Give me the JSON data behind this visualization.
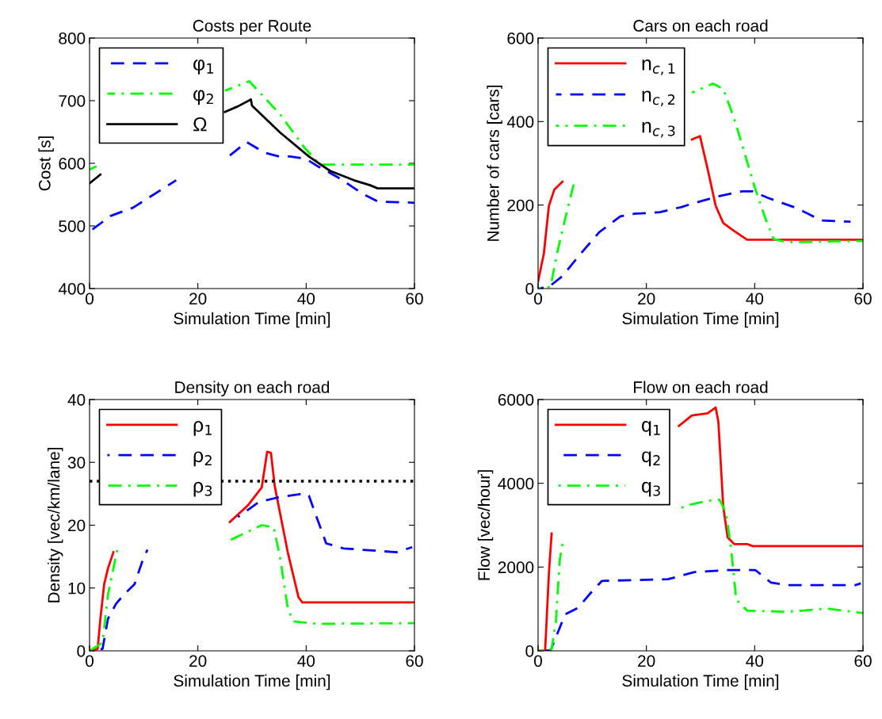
{
  "chart_data": [
    {
      "type": "line",
      "title": "Costs per Route",
      "xlabel": "Simulation Time [min]",
      "ylabel": "Cost [s]",
      "xlim": [
        0,
        60
      ],
      "ylim": [
        400,
        800
      ],
      "xticks": [
        0,
        20,
        40,
        60
      ],
      "yticks": [
        400,
        500,
        600,
        700,
        800
      ],
      "legend": "top left",
      "grid": false,
      "series": [
        {
          "name": "φ$_{1}$",
          "color": "#0000ff",
          "line_style": "dashed",
          "x": [
            0,
            3.9,
            8,
            16,
            20,
            25.4,
            29,
            32.3,
            35,
            37,
            40,
            42,
            46,
            50.3,
            53.2,
            60
          ],
          "values": [
            491,
            516,
            529,
            573,
            null,
            609,
            634,
            617,
            611,
            611,
            607,
            596,
            577,
            552,
            539,
            537
          ]
        },
        {
          "name": "φ$_{2}$",
          "color": "#00ff00",
          "line_style": "dashdot",
          "x": [
            0,
            2,
            10,
            25,
            29.5,
            35.2,
            39.6,
            42.5,
            60
          ],
          "values": [
            590,
            598,
            null,
            716,
            731,
            678,
            626,
            598,
            598
          ]
        },
        {
          "name": "Ω",
          "color": "#000000",
          "line_style": "solid",
          "x": [
            0,
            2,
            10,
            25,
            27.4,
            29.8,
            30,
            35.2,
            40.5,
            44.4,
            48.8,
            51.8,
            53.2,
            60
          ],
          "values": [
            568,
            582,
            null,
            682,
            691,
            702,
            692,
            649,
            611,
            588,
            573,
            565,
            560,
            560
          ]
        }
      ]
    },
    {
      "type": "line",
      "title": "Cars on each road",
      "xlabel": "Simulation Time [min]",
      "ylabel": "Number of cars [cars]",
      "xlim": [
        0,
        60
      ],
      "ylim": [
        0,
        600
      ],
      "xticks": [
        0,
        20,
        40,
        60
      ],
      "yticks": [
        0,
        200,
        400,
        600
      ],
      "legend": "top left",
      "grid": false,
      "series": [
        {
          "name": "n$_{c,1}$",
          "color": "#ff0000",
          "line_style": "solid",
          "x": [
            0,
            1.07,
            2,
            3,
            4.5,
            15,
            28.4,
            29.9,
            31.3,
            32.8,
            34.2,
            36.2,
            38.6,
            60
          ],
          "values": [
            17,
            84,
            198,
            237,
            256,
            null,
            357,
            365,
            287,
            198,
            157,
            138,
            117,
            117
          ]
        },
        {
          "name": "n$_{c,2}$",
          "color": "#0000ff",
          "line_style": "dashed",
          "x": [
            0,
            2,
            4.5,
            7.9,
            11.3,
            15.2,
            17.7,
            22.5,
            26.4,
            28.9,
            33.3,
            37.7,
            39.6,
            42.5,
            47.9,
            52.3,
            57.7
          ],
          "values": [
            0,
            4,
            30,
            84,
            135,
            173,
            179,
            183,
            195,
            205,
            221,
            233,
            233,
            217,
            192,
            163,
            160
          ]
        },
        {
          "name": "n$_{c,3}$",
          "color": "#00ff00",
          "line_style": "dashdot",
          "x": [
            0,
            2.3,
            3.5,
            5,
            6.7,
            15,
            28.4,
            32.3,
            34.2,
            36.2,
            38.1,
            40,
            42,
            43.5,
            45.9,
            60
          ],
          "values": [
            0,
            4,
            84,
            167,
            256,
            null,
            469,
            491,
            478,
            408,
            326,
            243,
            167,
            119,
            111,
            114
          ]
        }
      ]
    },
    {
      "type": "line",
      "title": "Density on each road",
      "xlabel": "Simulation Time [min]",
      "ylabel": "Density [vec/km/lane]",
      "xlim": [
        0,
        60
      ],
      "ylim": [
        0,
        40
      ],
      "xticks": [
        0,
        20,
        40,
        60
      ],
      "yticks": [
        0,
        10,
        20,
        30,
        40
      ],
      "legend": "top left",
      "grid": false,
      "ref_lines": [
        {
          "axis": "y",
          "value": 27,
          "color": "#000000",
          "line_style": "dotted"
        }
      ],
      "series": [
        {
          "name": "ρ$_{1}$",
          "color": "#ff0000",
          "line_style": "solid",
          "x": [
            0,
            1.5,
            2,
            2.7,
            3.4,
            4.4,
            15,
            25.9,
            29.3,
            31.8,
            32.8,
            33.5,
            34.2,
            36.6,
            38.6,
            39.3,
            60
          ],
          "values": [
            0,
            0.3,
            5.1,
            10.6,
            13.1,
            15.7,
            null,
            20.5,
            23.2,
            26,
            31.7,
            31.5,
            26.2,
            15.7,
            8.5,
            7.7,
            7.7
          ]
        },
        {
          "name": "ρ$_{2}$",
          "color": "#0000ff",
          "line_style": "dashed",
          "x": [
            0,
            2.4,
            3.4,
            4.9,
            6.3,
            8.3,
            9.8,
            10.7,
            20,
            27.4,
            31.3,
            35.2,
            38.6,
            39.6,
            40.5,
            41.8,
            43.7,
            46.9,
            56.7,
            59.6
          ],
          "values": [
            0,
            0.3,
            5.1,
            7.5,
            8.9,
            10.6,
            14.4,
            16.1,
            null,
            21.3,
            23.7,
            24.5,
            24.9,
            25.1,
            24.7,
            21.6,
            17.1,
            16.3,
            15.7,
            16.5
          ]
        },
        {
          "name": "ρ$_{3}$",
          "color": "#00ff00",
          "line_style": "dashdot",
          "x": [
            0,
            2.4,
            3.4,
            4.4,
            5.1,
            15,
            25.9,
            31.8,
            34,
            35.2,
            36.6,
            37.6,
            42,
            60
          ],
          "values": [
            0,
            1.3,
            8.9,
            13.1,
            16.1,
            null,
            17.6,
            20,
            19.7,
            14.8,
            6.8,
            4.7,
            4.3,
            4.4
          ]
        }
      ]
    },
    {
      "type": "line",
      "title": "Flow on each road",
      "xlabel": "Simulation Time [min]",
      "ylabel": "Flow [vec/hour]",
      "xlim": [
        0,
        60
      ],
      "ylim": [
        0,
        6000
      ],
      "xticks": [
        0,
        20,
        40,
        60
      ],
      "yticks": [
        0,
        2000,
        4000,
        6000
      ],
      "legend": "top left",
      "grid": false,
      "series": [
        {
          "name": "q$_{1}$",
          "color": "#ff0000",
          "line_style": "solid",
          "x": [
            0,
            1.3,
            2,
            2.5,
            15,
            26,
            28.4,
            31.3,
            32.8,
            33.3,
            34.2,
            35,
            36.2,
            38.6,
            39.6,
            60
          ],
          "values": [
            0,
            0,
            1850,
            2800,
            null,
            5370,
            5620,
            5670,
            5810,
            5460,
            3440,
            2710,
            2550,
            2550,
            2500,
            2500
          ]
        },
        {
          "name": "q$_{2}$",
          "color": "#0000ff",
          "line_style": "dashed",
          "x": [
            0,
            2.3,
            3.5,
            5,
            7.4,
            9.9,
            11.8,
            24,
            28.9,
            35.2,
            40.1,
            43,
            46,
            58.6,
            59.6
          ],
          "values": [
            0,
            10,
            390,
            870,
            1030,
            1410,
            1670,
            1710,
            1880,
            1930,
            1930,
            1630,
            1570,
            1570,
            1610
          ]
        },
        {
          "name": "q$_{3}$",
          "color": "#00ff00",
          "line_style": "dashdot",
          "x": [
            0,
            2.5,
            3.3,
            4,
            4.5,
            15,
            26,
            28.4,
            31.3,
            33.5,
            34.7,
            35.6,
            36.6,
            38.6,
            46,
            53.4,
            60
          ],
          "values": [
            0,
            40,
            710,
            2170,
            2550,
            null,
            3400,
            3500,
            3580,
            3610,
            3310,
            2490,
            1220,
            960,
            930,
            1010,
            900
          ]
        }
      ]
    }
  ]
}
